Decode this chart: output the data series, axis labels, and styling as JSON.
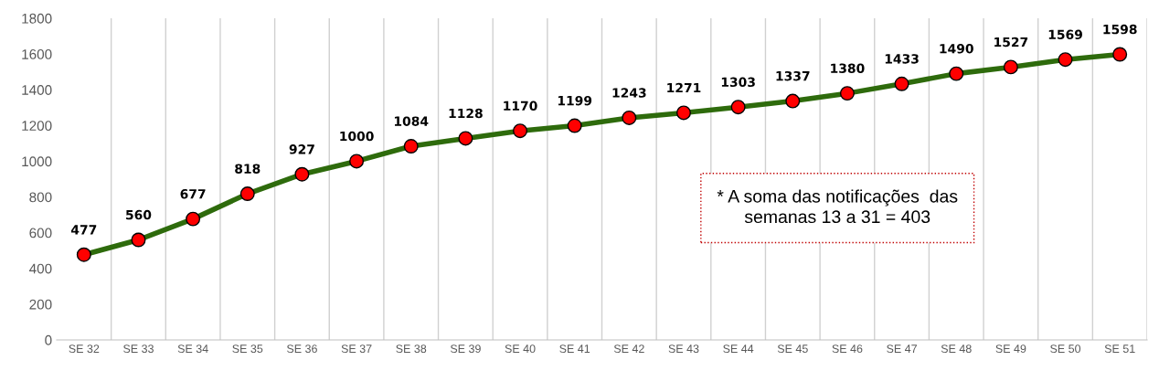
{
  "chart_data": {
    "type": "line",
    "categories": [
      "SE 32",
      "SE 33",
      "SE 34",
      "SE 35",
      "SE 36",
      "SE 37",
      "SE 38",
      "SE 39",
      "SE 40",
      "SE 41",
      "SE 42",
      "SE 43",
      "SE 44",
      "SE 45",
      "SE 46",
      "SE 47",
      "SE 48",
      "SE 49",
      "SE 50",
      "SE 51"
    ],
    "series": [
      {
        "color": "#2e6b0c",
        "colors": [
          "#ff0000",
          "#ff0000",
          "#ff0000",
          "#ff0000",
          "#ff0000",
          "#ff0000",
          "#ff0000",
          "#ff0000",
          "#ff0000",
          "#ff0000",
          "#ff0000",
          "#ff0000",
          "#ff0000",
          "#ff0000",
          "#ff0000",
          "#ff0000",
          "#ff0000",
          "#ff0000",
          "#ff0000",
          "#ff0000"
        ],
        "values": [
          477,
          560,
          677,
          818,
          927,
          1000,
          1084,
          1128,
          1170,
          1199,
          1243,
          1271,
          1303,
          1337,
          1380,
          1433,
          1490,
          1527,
          1569,
          1598
        ]
      }
    ],
    "ylim": [
      0,
      1800
    ],
    "yticks": [
      0,
      200,
      400,
      600,
      800,
      1000,
      1200,
      1400,
      1600,
      1800
    ],
    "grid": "x",
    "marker": "circle",
    "line_style": "solid",
    "data_labels": true,
    "legend": false,
    "annotations": [
      "* A soma das notificações  das\nsemanas 13 a 31 = 403"
    ]
  }
}
